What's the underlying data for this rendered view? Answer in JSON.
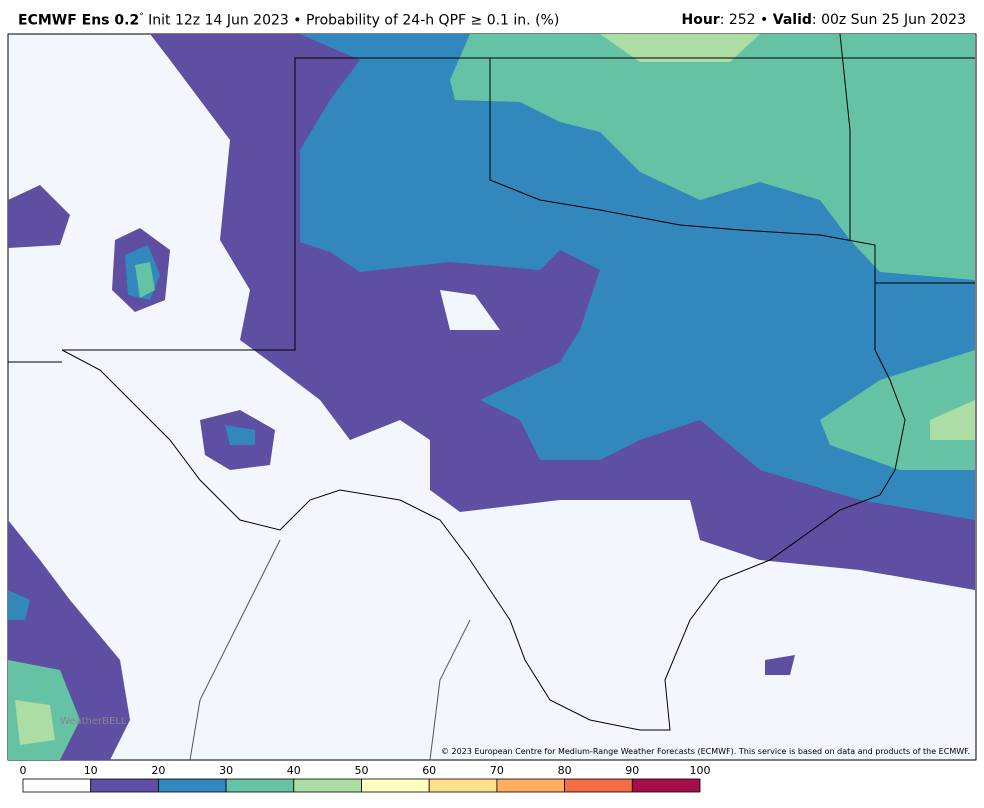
{
  "header": {
    "model": "ECMWF Ens 0.2",
    "degree": "°",
    "description": "Init 12z 14 Jun 2023 • Probability of 24-h QPF ≥ 0.1 in. (%)",
    "hour_label": "Hour",
    "hour_value": ": 252 •",
    "valid_label": "Valid",
    "valid_value": ": 00z Sun 25 Jun 2023"
  },
  "copyright": "© 2023 European Centre for Medium-Range Weather Forecasts (ECMWF). This service is based on data and products of the ECMWF.",
  "watermark": "WeatherBELL",
  "colorbar": {
    "ticks": [
      0,
      10,
      20,
      30,
      40,
      50,
      60,
      70,
      80,
      90,
      100
    ],
    "colors": [
      "#ffffff",
      "#5e4fa2",
      "#3288bd",
      "#66c2a5",
      "#abdda4",
      "#ffffbf",
      "#fee08b",
      "#fdae61",
      "#f46d43",
      "#a50f4b"
    ]
  }
}
